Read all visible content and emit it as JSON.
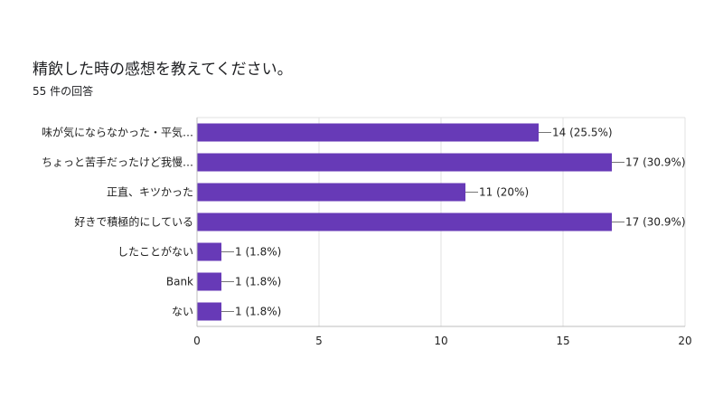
{
  "chart_data": {
    "type": "bar",
    "orientation": "horizontal",
    "title": "精飲した時の感想を教えてください。",
    "subtitle": "55 件の回答",
    "categories": [
      "味が気にならなかった・平気…",
      "ちょっと苦手だったけど我慢…",
      "正直、キツかった",
      "好きで積極的にしている",
      "したことがない",
      "Bank",
      "ない"
    ],
    "values": [
      14,
      17,
      11,
      17,
      1,
      1,
      1
    ],
    "data_labels": [
      "14 (25.5%)",
      "17 (30.9%)",
      "11 (20%)",
      "17 (30.9%)",
      "1 (1.8%)",
      "1 (1.8%)",
      "1 (1.8%)"
    ],
    "xlim": [
      0,
      20
    ],
    "xticks": [
      "0",
      "5",
      "10",
      "15",
      "20"
    ],
    "grid": true,
    "legend": "none",
    "bar_color": "#673ab7",
    "grid_color": "#e0e0e0",
    "axis_color": "#bdbdbd"
  }
}
